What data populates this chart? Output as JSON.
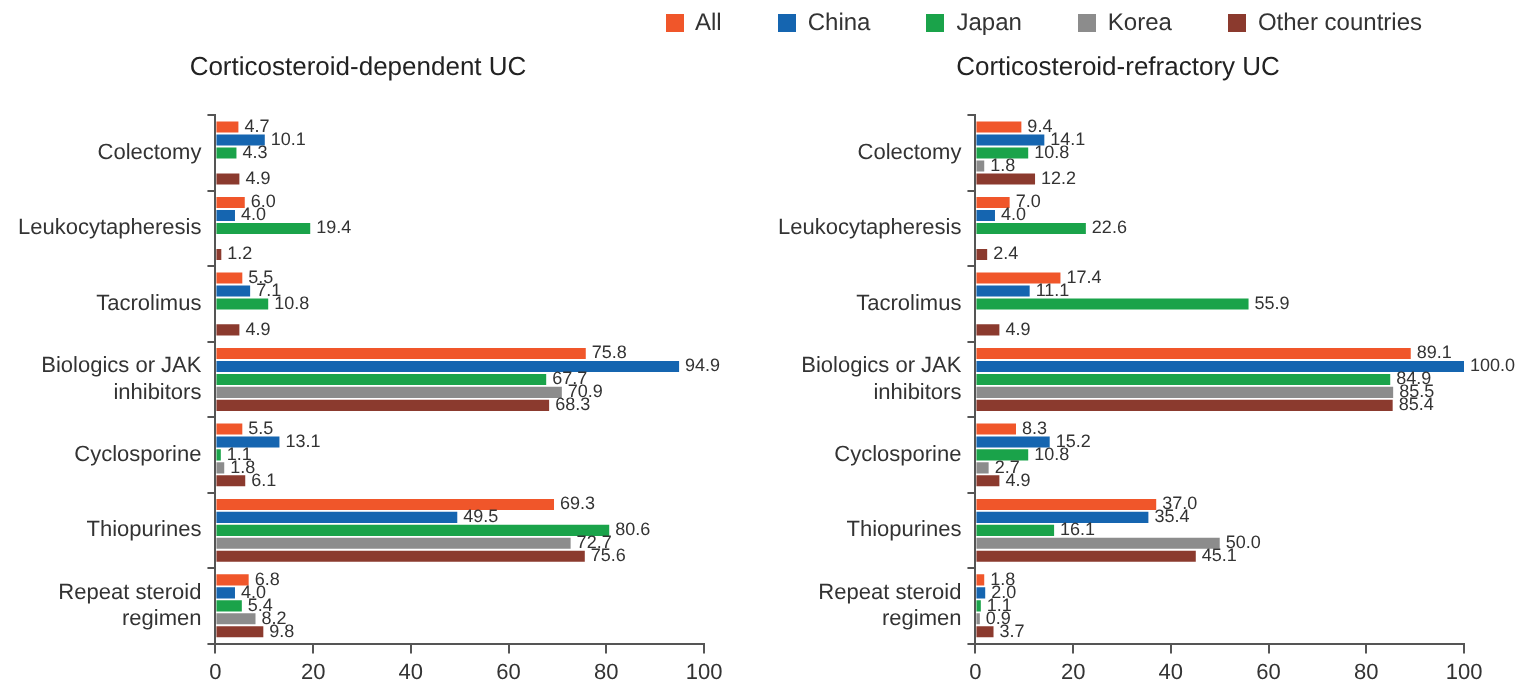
{
  "chart_data": [
    {
      "type": "bar",
      "orientation": "horizontal",
      "title": "Corticosteroid-dependent UC",
      "legend": "top",
      "grid": false,
      "categories": [
        "Colectomy",
        "Leukocytapheresis",
        "Tacrolimus",
        "Biologics or JAK inhibitors",
        "Cyclosporine",
        "Thiopurines",
        "Repeat steroid regimen"
      ],
      "xlim": [
        0,
        100
      ],
      "xticks": [
        0,
        20,
        40,
        60,
        80,
        100
      ],
      "series": [
        {
          "name": "All",
          "color": "#f0562a",
          "values": [
            4.7,
            6.0,
            5.5,
            75.8,
            5.5,
            69.3,
            6.8
          ],
          "value_labels": [
            "4.7",
            "6.0",
            "5.5",
            "75.8",
            "5.5",
            "69.3",
            "6.8"
          ]
        },
        {
          "name": "China",
          "color": "#1565b0",
          "values": [
            10.1,
            4.0,
            7.1,
            94.9,
            13.1,
            49.5,
            4.0
          ],
          "value_labels": [
            "10.1",
            "4.0",
            "7.1",
            "94.9",
            "13.1",
            "49.5",
            "4.0"
          ]
        },
        {
          "name": "Japan",
          "color": "#1aa34a",
          "values": [
            4.3,
            19.4,
            10.8,
            67.7,
            1.1,
            80.6,
            5.4
          ],
          "value_labels": [
            "4.3",
            "19.4",
            "10.8",
            "67.7",
            "1.1",
            "80.6",
            "5.4"
          ]
        },
        {
          "name": "Korea",
          "color": "#8c8c8c",
          "values": [
            null,
            null,
            null,
            70.9,
            1.8,
            72.7,
            8.2
          ],
          "value_labels": [
            null,
            null,
            null,
            "70.9",
            "1.8",
            "72.7",
            "8.2"
          ]
        },
        {
          "name": "Other countries",
          "color": "#8b3a2e",
          "values": [
            4.9,
            1.2,
            4.9,
            68.3,
            6.1,
            75.6,
            9.8
          ],
          "value_labels": [
            "4.9",
            "1.2",
            "4.9",
            "68.3",
            "6.1",
            "75.6",
            "9.8"
          ]
        }
      ]
    },
    {
      "type": "bar",
      "orientation": "horizontal",
      "title": "Corticosteroid-refractory UC",
      "grid": false,
      "categories": [
        "Colectomy",
        "Leukocytapheresis",
        "Tacrolimus",
        "Biologics or JAK inhibitors",
        "Cyclosporine",
        "Thiopurines",
        "Repeat steroid regimen"
      ],
      "xlim": [
        0,
        100
      ],
      "xticks": [
        0,
        20,
        40,
        60,
        80,
        100
      ],
      "series": [
        {
          "color": "#f0562a",
          "values": [
            9.4,
            7.0,
            17.4,
            89.1,
            8.3,
            37.0,
            1.8
          ],
          "value_labels": [
            "9.4",
            "7.0",
            "17.4",
            "89.1",
            "8.3",
            "37.0",
            "1.8"
          ]
        },
        {
          "color": "#1565b0",
          "values": [
            14.1,
            4.0,
            11.1,
            100.0,
            15.2,
            35.4,
            2.0
          ],
          "value_labels": [
            "14.1",
            "4.0",
            "11.1",
            "100.0",
            "15.2",
            "35.4",
            "2.0"
          ]
        },
        {
          "color": "#1aa34a",
          "values": [
            10.8,
            22.6,
            55.9,
            84.9,
            10.8,
            16.1,
            1.1
          ],
          "value_labels": [
            "10.8",
            "22.6",
            "55.9",
            "84.9",
            "10.8",
            "16.1",
            "1.1"
          ]
        },
        {
          "color": "#8c8c8c",
          "values": [
            1.8,
            null,
            null,
            85.5,
            2.7,
            50.0,
            0.9
          ],
          "value_labels": [
            "1.8",
            null,
            null,
            "85.5",
            "2.7",
            "50.0",
            "0.9"
          ]
        },
        {
          "color": "#8b3a2e",
          "values": [
            12.2,
            2.4,
            4.9,
            85.4,
            4.9,
            45.1,
            3.7
          ],
          "value_labels": [
            "12.2",
            "2.4",
            "4.9",
            "85.4",
            "4.9",
            "45.1",
            "3.7"
          ]
        }
      ]
    }
  ]
}
